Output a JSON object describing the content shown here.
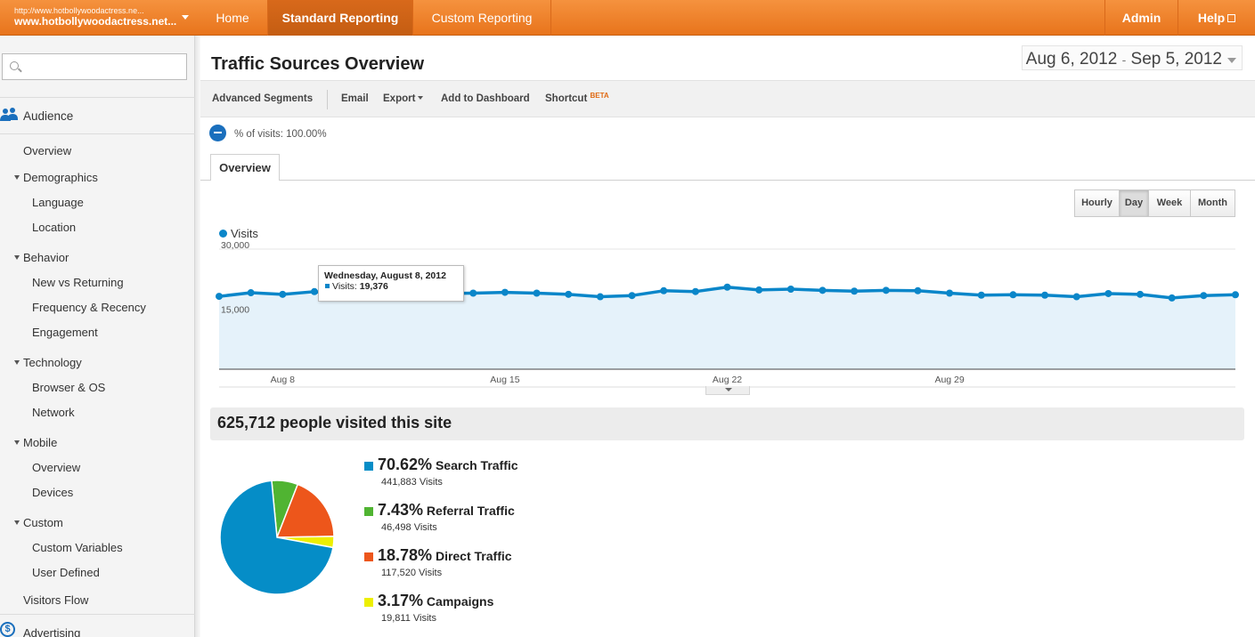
{
  "account": {
    "url": "http://www.hotbollywoodactress.ne...",
    "name": "www.hotbollywoodactress.net..."
  },
  "nav": {
    "home": "Home",
    "standard": "Standard Reporting",
    "custom": "Custom Reporting",
    "admin": "Admin",
    "help": "Help"
  },
  "sidebar": {
    "search_placeholder": "",
    "audience": "Audience",
    "items": {
      "overview": "Overview",
      "demographics": "Demographics",
      "language": "Language",
      "location": "Location",
      "behavior": "Behavior",
      "new_vs_returning": "New vs Returning",
      "frequency": "Frequency & Recency",
      "engagement": "Engagement",
      "technology": "Technology",
      "browser": "Browser & OS",
      "network": "Network",
      "mobile": "Mobile",
      "mobile_overview": "Overview",
      "devices": "Devices",
      "custom": "Custom",
      "custom_variables": "Custom Variables",
      "user_defined": "User Defined",
      "visitors_flow": "Visitors Flow"
    },
    "advertising": "Advertising"
  },
  "report": {
    "title": "Traffic Sources Overview",
    "date_start": "Aug 6, 2012",
    "date_sep": "-",
    "date_end": "Sep 5, 2012",
    "toolbar": {
      "segments": "Advanced Segments",
      "email": "Email",
      "export": "Export",
      "dashboard": "Add to Dashboard",
      "shortcut": "Shortcut",
      "beta": "BETA"
    },
    "segment_text": "% of visits: 100.00%",
    "tab": "Overview",
    "granularity": [
      "Hourly",
      "Day",
      "Week",
      "Month"
    ],
    "granularity_selected": "Day",
    "summary": "625,712 people visited this site"
  },
  "chart_data": {
    "type": "area",
    "series": [
      {
        "name": "Visits",
        "values": [
          18200,
          19100,
          18700,
          19376,
          18400,
          18900,
          18600,
          18900,
          19000,
          19200,
          19000,
          18700,
          18100,
          18400,
          19600,
          19400,
          20500,
          19800,
          20000,
          19700,
          19500,
          19700,
          19600,
          19000,
          18500,
          18600,
          18500,
          18100,
          18900,
          18700,
          17800,
          18400,
          18600
        ]
      }
    ],
    "x_ticks": [
      "Aug 8",
      "Aug 15",
      "Aug 22",
      "Aug 29"
    ],
    "y_ticks": [
      "30,000",
      "15,000"
    ],
    "ylim": [
      0,
      30000
    ],
    "color": "#0a86c9",
    "grid": true,
    "tooltip": {
      "date": "Wednesday, August 8, 2012",
      "label": "Visits:",
      "value": "19,376"
    }
  },
  "sources": [
    {
      "pct": "70.62%",
      "name": "Search Traffic",
      "visits": "441,883 Visits",
      "color": "#058dc7",
      "value": 70.62
    },
    {
      "pct": "7.43%",
      "name": "Referral Traffic",
      "visits": "46,498 Visits",
      "color": "#50b432",
      "value": 7.43
    },
    {
      "pct": "18.78%",
      "name": "Direct Traffic",
      "visits": "117,520 Visits",
      "color": "#ed561b",
      "value": 18.78
    },
    {
      "pct": "3.17%",
      "name": "Campaigns",
      "visits": "19,811 Visits",
      "color": "#edef00",
      "value": 3.17
    }
  ]
}
